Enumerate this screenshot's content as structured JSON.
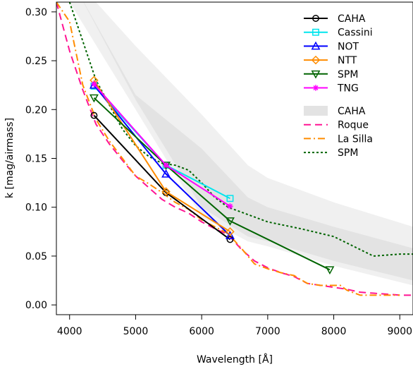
{
  "chart_data": {
    "type": "line",
    "title": "",
    "xlabel": "Wavelength [Å]",
    "ylabel": "k [mag/airmass]",
    "xlim": [
      3800,
      9200
    ],
    "ylim": [
      -0.01,
      0.31
    ],
    "xticks": [
      4000,
      5000,
      6000,
      7000,
      8000,
      9000
    ],
    "yticks": [
      0.0,
      0.05,
      0.1,
      0.15,
      0.2,
      0.25,
      0.3
    ],
    "xtick_labels": [
      "4000",
      "5000",
      "6000",
      "7000",
      "8000",
      "9000"
    ],
    "ytick_labels": [
      "0.00",
      "0.05",
      "0.10",
      "0.15",
      "0.20",
      "0.25",
      "0.30"
    ],
    "grid": false,
    "legend_position": "top-right",
    "bands": [
      {
        "name": "",
        "color": "#f0f0f0",
        "x": [
          4000,
          5000,
          6000,
          6700,
          7000,
          8000,
          9200
        ],
        "lower": [
          0.31,
          0.2,
          0.09,
          0.065,
          0.06,
          0.04,
          0.02
        ],
        "upper": [
          0.34,
          0.265,
          0.195,
          0.143,
          0.13,
          0.105,
          0.08
        ]
      },
      {
        "name": "CAHA",
        "color": "#e3e3e3",
        "x": [
          4050,
          5000,
          6000,
          6700,
          7000,
          8000,
          9200
        ],
        "lower": [
          0.33,
          0.21,
          0.1,
          0.07,
          0.065,
          0.045,
          0.025
        ],
        "upper": [
          0.33,
          0.215,
          0.16,
          0.11,
          0.1,
          0.08,
          0.058
        ]
      }
    ],
    "series": [
      {
        "name": "CAHA",
        "color": "#000000",
        "marker": "circle",
        "x": [
          4370,
          5460,
          6430
        ],
        "y": [
          0.194,
          0.115,
          0.067
        ]
      },
      {
        "name": "Cassini",
        "color": "#00e5ee",
        "marker": "square",
        "x": [
          4370,
          5460,
          6430
        ],
        "y": [
          0.224,
          0.143,
          0.109
        ]
      },
      {
        "name": "NOT",
        "color": "#0000ff",
        "marker": "triangle-up",
        "x": [
          4370,
          5460,
          6430
        ],
        "y": [
          0.225,
          0.134,
          0.071
        ]
      },
      {
        "name": "NTT",
        "color": "#ff8c00",
        "marker": "diamond",
        "x": [
          4370,
          5460,
          6430
        ],
        "y": [
          0.23,
          0.116,
          0.075
        ]
      },
      {
        "name": "SPM",
        "color": "#006400",
        "marker": "triangle-down",
        "x": [
          4370,
          5460,
          6430,
          7940
        ],
        "y": [
          0.212,
          0.143,
          0.086,
          0.036
        ]
      },
      {
        "name": "TNG",
        "color": "#ff00ff",
        "marker": "star",
        "x": [
          4370,
          5460,
          6430
        ],
        "y": [
          0.226,
          0.143,
          0.101
        ]
      }
    ],
    "curves": [
      {
        "name": "Roque",
        "color": "#ff1493",
        "dash": "10,6",
        "x": [
          3800,
          4000,
          4200,
          4400,
          4600,
          4800,
          5000,
          5200,
          5400,
          5600,
          5800,
          6000,
          6200,
          6400,
          6600,
          6800,
          7000,
          7200,
          7400,
          7600,
          7800,
          8000,
          8200,
          8400,
          8600,
          8800,
          9000,
          9200
        ],
        "y": [
          0.31,
          0.26,
          0.22,
          0.185,
          0.165,
          0.148,
          0.132,
          0.12,
          0.108,
          0.1,
          0.094,
          0.085,
          0.078,
          0.072,
          0.057,
          0.045,
          0.038,
          0.033,
          0.029,
          0.022,
          0.02,
          0.018,
          0.016,
          0.013,
          0.012,
          0.011,
          0.01,
          0.01
        ]
      },
      {
        "name": "La Silla",
        "color": "#ff8c00",
        "dash": "10,4,2,4",
        "x": [
          3800,
          4000,
          4200,
          4400,
          4600,
          4800,
          5000,
          5200,
          5400,
          5600,
          5800,
          6000,
          6200,
          6400,
          6600,
          6800,
          7000,
          7200,
          7400,
          7600,
          7800,
          8000,
          8100,
          8200,
          8400,
          8600,
          8800,
          9000
        ],
        "y": [
          0.31,
          0.29,
          0.225,
          0.19,
          0.168,
          0.15,
          0.132,
          0.124,
          0.115,
          0.105,
          0.098,
          0.087,
          0.08,
          0.073,
          0.058,
          0.042,
          0.037,
          0.033,
          0.03,
          0.022,
          0.02,
          0.02,
          0.02,
          0.015,
          0.01,
          0.01,
          0.01,
          0.01
        ]
      },
      {
        "name": "SPM",
        "color": "#006400",
        "dash": "3,3",
        "x": [
          4000,
          4200,
          4400,
          4600,
          4800,
          5000,
          5200,
          5400,
          5600,
          5800,
          6000,
          6200,
          6400,
          6600,
          6800,
          7000,
          7500,
          8000,
          8300,
          8600,
          9000,
          9200
        ],
        "y": [
          0.31,
          0.27,
          0.23,
          0.205,
          0.18,
          0.163,
          0.152,
          0.145,
          0.143,
          0.138,
          0.125,
          0.11,
          0.1,
          0.095,
          0.09,
          0.085,
          0.078,
          0.07,
          0.06,
          0.05,
          0.052,
          0.052
        ]
      }
    ],
    "legend": {
      "points": [
        "CAHA",
        "Cassini",
        "NOT",
        "NTT",
        "SPM",
        "TNG"
      ],
      "models": [
        {
          "name": "CAHA",
          "style": "band",
          "color": "#e3e3e3"
        },
        {
          "name": "Roque",
          "style": "dash",
          "color": "#ff1493",
          "dash": "10,6"
        },
        {
          "name": "La Silla",
          "style": "dash",
          "color": "#ff8c00",
          "dash": "10,4,2,4"
        },
        {
          "name": "SPM",
          "style": "dash",
          "color": "#006400",
          "dash": "3,3"
        }
      ]
    }
  }
}
